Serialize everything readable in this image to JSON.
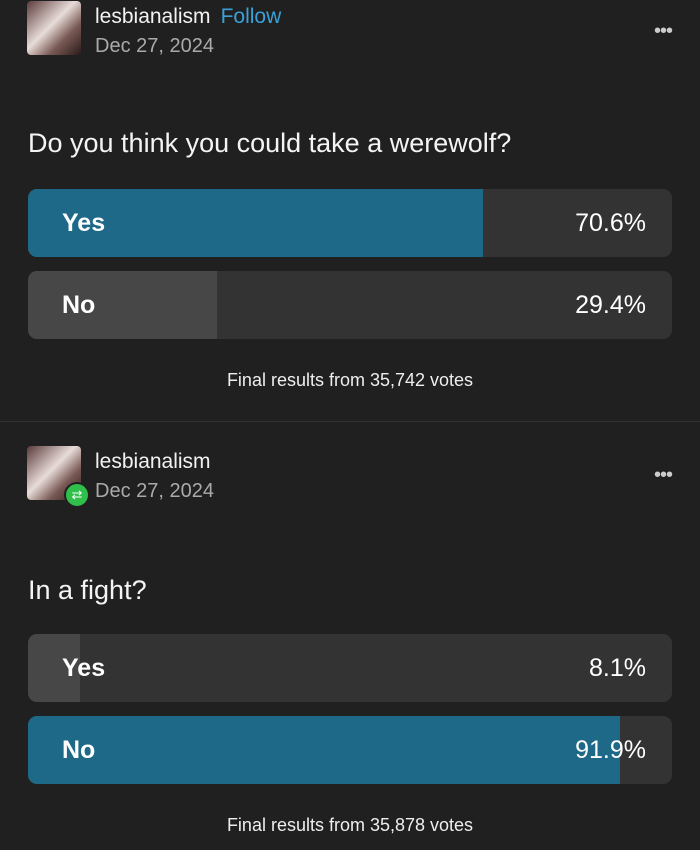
{
  "posts": [
    {
      "username": "lesbianalism",
      "follow_label": "Follow",
      "date": "Dec 27, 2024",
      "question": "Do you think you could take a werewolf?",
      "options": [
        {
          "label": "Yes",
          "percent_text": "70.6%",
          "percent": 70.6,
          "color": "#1e6987"
        },
        {
          "label": "No",
          "percent_text": "29.4%",
          "percent": 29.4,
          "color": "#474747"
        }
      ],
      "footer": "Final results from 35,742 votes"
    },
    {
      "username": "lesbianalism",
      "date": "Dec 27, 2024",
      "reblog_icon": "reblog-icon",
      "question": "In a fight?",
      "options": [
        {
          "label": "Yes",
          "percent_text": "8.1%",
          "percent": 8.1,
          "color": "#474747"
        },
        {
          "label": "No",
          "percent_text": "91.9%",
          "percent": 91.9,
          "color": "#1e6987"
        }
      ],
      "footer": "Final results from 35,878 votes"
    }
  ],
  "more_icon": "•••"
}
